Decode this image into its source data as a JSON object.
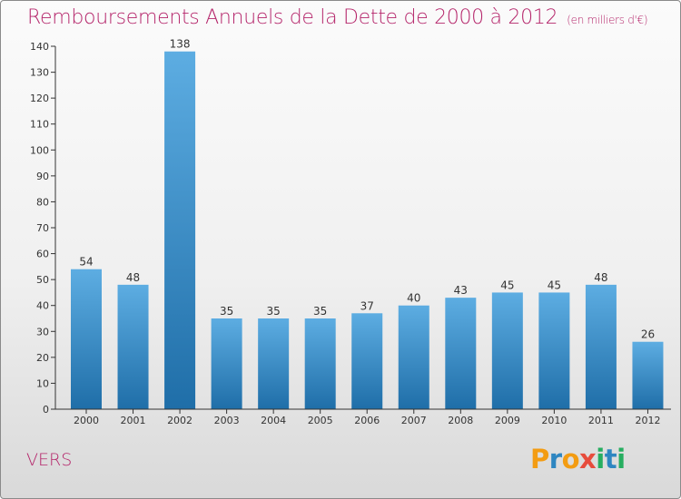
{
  "header": {
    "title": "Remboursements Annuels de la Dette de 2000 à 2012",
    "unit": "(en milliers d'€)"
  },
  "footer": {
    "commune": "VERS"
  },
  "logo": {
    "letters": [
      "P",
      "r",
      "o",
      "x",
      "i",
      "t",
      "i"
    ],
    "colors": [
      "#f39c12",
      "#2e86c1",
      "#f39c12",
      "#e74c3c",
      "#27ae60",
      "#2e86c1",
      "#27ae60"
    ]
  },
  "colors": {
    "accent": "#b5266b",
    "bar_light": "#5dade2",
    "bar_dark": "#1f6ea8",
    "axis": "#333333"
  },
  "chart_data": {
    "type": "bar",
    "categories": [
      "2000",
      "2001",
      "2002",
      "2003",
      "2004",
      "2005",
      "2006",
      "2007",
      "2008",
      "2009",
      "2010",
      "2011",
      "2012"
    ],
    "values": [
      54,
      48,
      138,
      35,
      35,
      35,
      37,
      40,
      43,
      45,
      45,
      48,
      26
    ],
    "data_labels": [
      "54",
      "48",
      "138",
      "35",
      "35",
      "35",
      "37",
      "40",
      "43",
      "45",
      "45",
      "48",
      "26"
    ],
    "ylim": [
      0,
      140
    ],
    "yticks": [
      0,
      10,
      20,
      30,
      40,
      50,
      60,
      70,
      80,
      90,
      100,
      110,
      120,
      130,
      140
    ],
    "grid": false,
    "legend": "none"
  }
}
